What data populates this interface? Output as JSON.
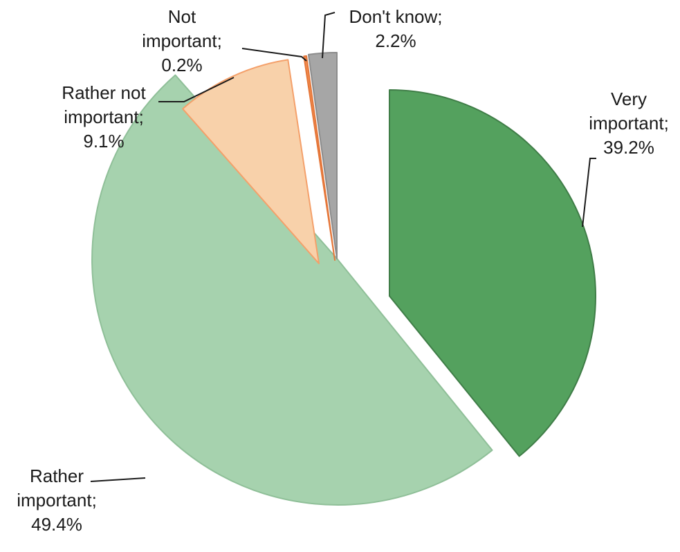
{
  "chart_data": {
    "type": "pie",
    "title": "",
    "slices": [
      {
        "label": "Very important",
        "value": 39.2,
        "label_lines": [
          "Very",
          "important;",
          "39.2%"
        ],
        "color": "#54a15e",
        "stroke": "#3f7d47"
      },
      {
        "label": "Rather important",
        "value": 49.4,
        "label_lines": [
          "Rather",
          "important;",
          "49.4%"
        ],
        "color": "#a6d2ae",
        "stroke": "#8fbf98"
      },
      {
        "label": "Rather not important",
        "value": 9.1,
        "label_lines": [
          "Rather not",
          "important;",
          "9.1%"
        ],
        "color": "#f8d1aa",
        "stroke": "#f4a06a"
      },
      {
        "label": "Not important",
        "value": 0.2,
        "label_lines": [
          "Not",
          "important;",
          "0.2%"
        ],
        "color": "#f28c4e",
        "stroke": "#e5773a"
      },
      {
        "label": "Don't know",
        "value": 2.2,
        "label_lines": [
          "Don't know;",
          "2.2%"
        ],
        "color": "#a6a6a6",
        "stroke": "#8c8c8c"
      }
    ],
    "start_angle": "12 o'clock",
    "direction": "clockwise",
    "exploded": true,
    "legend": "none",
    "data_labels": "category; percentage"
  }
}
